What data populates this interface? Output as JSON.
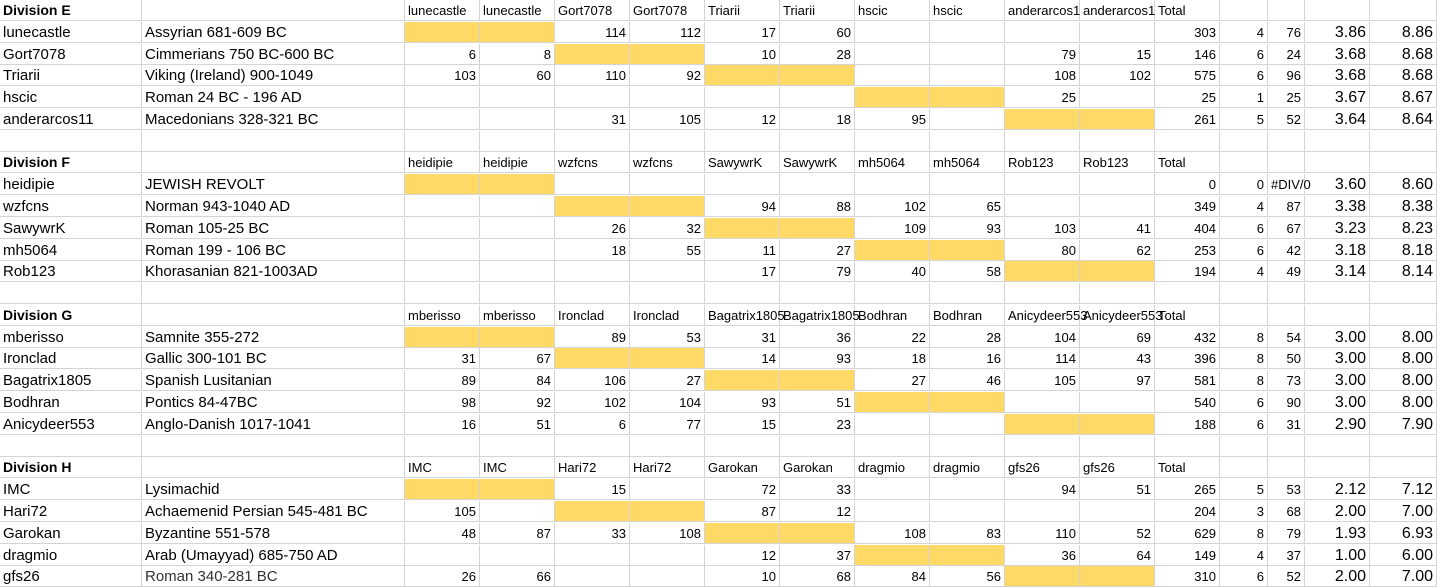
{
  "highlight_color": "#ffd966",
  "divisions": [
    {
      "title": "Division E",
      "headers": [
        "lunecastle",
        "lunecastle",
        "Gort7078",
        "Gort7078",
        "Triarii",
        "Triarii",
        "hscic",
        "hscic",
        "anderarcos1",
        "anderarcos1",
        "Total"
      ],
      "rows": [
        {
          "player": "lunecastle",
          "army": "Assyrian 681-609 BC",
          "cells": [
            "",
            "",
            "114",
            "112",
            "17",
            "60",
            "",
            "",
            "",
            ""
          ],
          "total": "303",
          "games": "4",
          "avg": "76",
          "s1": "3.86",
          "s2": "8.86"
        },
        {
          "player": "Gort7078",
          "army": "Cimmerians 750 BC-600 BC",
          "cells": [
            "6",
            "8",
            "",
            "",
            "10",
            "28",
            "",
            "",
            "79",
            "15"
          ],
          "total": "146",
          "games": "6",
          "avg": "24",
          "s1": "3.68",
          "s2": "8.68"
        },
        {
          "player": "Triarii",
          "army": "Viking (Ireland) 900-1049",
          "cells": [
            "103",
            "60",
            "110",
            "92",
            "",
            "",
            "",
            "",
            "108",
            "102"
          ],
          "total": "575",
          "games": "6",
          "avg": "96",
          "s1": "3.68",
          "s2": "8.68"
        },
        {
          "player": "hscic",
          "army": "Roman 24 BC - 196 AD",
          "cells": [
            "",
            "",
            "",
            "",
            "",
            "",
            "",
            "",
            "25",
            ""
          ],
          "total": "25",
          "games": "1",
          "avg": "25",
          "s1": "3.67",
          "s2": "8.67"
        },
        {
          "player": "anderarcos11",
          "army": "Macedonians 328-321 BC",
          "cells": [
            "",
            "",
            "31",
            "105",
            "12",
            "18",
            "95",
            "",
            "",
            ""
          ],
          "total": "261",
          "games": "5",
          "avg": "52",
          "s1": "3.64",
          "s2": "8.64"
        }
      ]
    },
    {
      "title": "Division F",
      "headers": [
        "heidipie",
        "heidipie",
        "wzfcns",
        "wzfcns",
        "SawywrK",
        "SawywrK",
        "mh5064",
        "mh5064",
        "Rob123",
        "Rob123",
        "Total"
      ],
      "rows": [
        {
          "player": "heidipie",
          "army": "JEWISH REVOLT",
          "cells": [
            "",
            "",
            "",
            "",
            "",
            "",
            "",
            "",
            "",
            ""
          ],
          "total": "0",
          "games": "0",
          "avg": "#DIV/0",
          "s1": "3.60",
          "s2": "8.60"
        },
        {
          "player": "wzfcns",
          "army": "Norman 943-1040 AD",
          "cells": [
            "",
            "",
            "",
            "",
            "94",
            "88",
            "102",
            "65",
            "",
            ""
          ],
          "total": "349",
          "games": "4",
          "avg": "87",
          "s1": "3.38",
          "s2": "8.38"
        },
        {
          "player": "SawywrK",
          "army": "Roman 105-25 BC",
          "cells": [
            "",
            "",
            "26",
            "32",
            "",
            "",
            "109",
            "93",
            "103",
            "41"
          ],
          "total": "404",
          "games": "6",
          "avg": "67",
          "s1": "3.23",
          "s2": "8.23"
        },
        {
          "player": "mh5064",
          "army": "Roman 199 - 106 BC",
          "cells": [
            "",
            "",
            "18",
            "55",
            "11",
            "27",
            "",
            "",
            "80",
            "62"
          ],
          "total": "253",
          "games": "6",
          "avg": "42",
          "s1": "3.18",
          "s2": "8.18"
        },
        {
          "player": "Rob123",
          "army": "Khorasanian 821-1003AD",
          "cells": [
            "",
            "",
            "",
            "",
            "17",
            "79",
            "40",
            "58",
            "",
            ""
          ],
          "total": "194",
          "games": "4",
          "avg": "49",
          "s1": "3.14",
          "s2": "8.14"
        }
      ]
    },
    {
      "title": "Division G",
      "headers": [
        "mberisso",
        "mberisso",
        "Ironclad",
        "Ironclad",
        "Bagatrix1805",
        "Bagatrix1805",
        "Bodhran",
        "Bodhran",
        "Anicydeer553",
        "Anicydeer553",
        "Total"
      ],
      "rows": [
        {
          "player": "mberisso",
          "army": "Samnite 355-272",
          "cells": [
            "",
            "",
            "89",
            "53",
            "31",
            "36",
            "22",
            "28",
            "104",
            "69"
          ],
          "total": "432",
          "games": "8",
          "avg": "54",
          "s1": "3.00",
          "s2": "8.00"
        },
        {
          "player": "Ironclad",
          "army": "Gallic 300-101 BC",
          "cells": [
            "31",
            "67",
            "",
            "",
            "14",
            "93",
            "18",
            "16",
            "114",
            "43"
          ],
          "total": "396",
          "games": "8",
          "avg": "50",
          "s1": "3.00",
          "s2": "8.00"
        },
        {
          "player": "Bagatrix1805",
          "army": "Spanish Lusitanian",
          "cells": [
            "89",
            "84",
            "106",
            "27",
            "",
            "",
            "27",
            "46",
            "105",
            "97"
          ],
          "total": "581",
          "games": "8",
          "avg": "73",
          "s1": "3.00",
          "s2": "8.00"
        },
        {
          "player": "Bodhran",
          "army": "Pontics 84-47BC",
          "cells": [
            "98",
            "92",
            "102",
            "104",
            "93",
            "51",
            "",
            "",
            "",
            ""
          ],
          "total": "540",
          "games": "6",
          "avg": "90",
          "s1": "3.00",
          "s2": "8.00"
        },
        {
          "player": "Anicydeer553",
          "army": "Anglo-Danish 1017-1041",
          "cells": [
            "16",
            "51",
            "6",
            "77",
            "15",
            "23",
            "",
            "",
            "",
            ""
          ],
          "total": "188",
          "games": "6",
          "avg": "31",
          "s1": "2.90",
          "s2": "7.90"
        }
      ]
    },
    {
      "title": "Division H",
      "headers": [
        "IMC",
        "IMC",
        "Hari72",
        "Hari72",
        "Garokan",
        "Garokan",
        "dragmio",
        "dragmio",
        "gfs26",
        "gfs26",
        "Total"
      ],
      "rows": [
        {
          "player": "IMC",
          "army": "Lysimachid",
          "cells": [
            "",
            "",
            "15",
            "",
            "72",
            "33",
            "",
            "",
            "94",
            "51"
          ],
          "total": "265",
          "games": "5",
          "avg": "53",
          "s1": "2.12",
          "s2": "7.12"
        },
        {
          "player": "Hari72",
          "army": "Achaemenid Persian 545-481 BC",
          "cells": [
            "105",
            "",
            "",
            "",
            "87",
            "12",
            "",
            "",
            "",
            ""
          ],
          "total": "204",
          "games": "3",
          "avg": "68",
          "s1": "2.00",
          "s2": "7.00"
        },
        {
          "player": "Garokan",
          "army": "Byzantine 551-578",
          "cells": [
            "48",
            "87",
            "33",
            "108",
            "",
            "",
            "108",
            "83",
            "110",
            "52"
          ],
          "total": "629",
          "games": "8",
          "avg": "79",
          "s1": "1.93",
          "s2": "6.93"
        },
        {
          "player": "dragmio",
          "army": "Arab (Umayyad) 685-750 AD",
          "cells": [
            "",
            "",
            "",
            "",
            "12",
            "37",
            "",
            "",
            "36",
            "64"
          ],
          "total": "149",
          "games": "4",
          "avg": "37",
          "s1": "1.00",
          "s2": "6.00"
        },
        {
          "player": "gfs26",
          "army": "Roman 340-281 BC",
          "cells": [
            "26",
            "66",
            "",
            "",
            "10",
            "68",
            "84",
            "56",
            "",
            ""
          ],
          "total": "310",
          "games": "6",
          "avg": "52",
          "s1": "2.00",
          "s2": "7.00"
        }
      ]
    }
  ]
}
